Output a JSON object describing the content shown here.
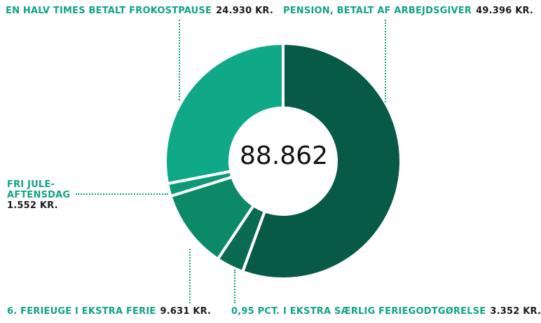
{
  "chart_data": {
    "type": "pie",
    "total": "88.862",
    "slices": [
      {
        "name": "PENSION, BETALT AF ARBEJDSGIVER",
        "value": 49396,
        "value_label": "49.396 KR.",
        "color": "#075a45"
      },
      {
        "name": "0,95 PCT. I EKSTRA SÆRLIG FERIEGODTGØRELSE",
        "value": 3352,
        "value_label": "3.352 KR.",
        "color": "#0a6b52"
      },
      {
        "name": "6. FERIEUGE I EKSTRA FERIE",
        "value": 9631,
        "value_label": "9.631 KR.",
        "color": "#0c8a68"
      },
      {
        "name": "FRI JULE-AFTENSDAG",
        "name_lines": [
          "FRI JULE-",
          "AFTENSDAG"
        ],
        "value": 1552,
        "value_label": "1.552 KR.",
        "color": "#0e9a77"
      },
      {
        "name": "EN HALV TIMES BETALT FROKOSTPAUSE",
        "value": 24930,
        "value_label": "24.930 KR.",
        "color": "#10a988"
      }
    ]
  }
}
